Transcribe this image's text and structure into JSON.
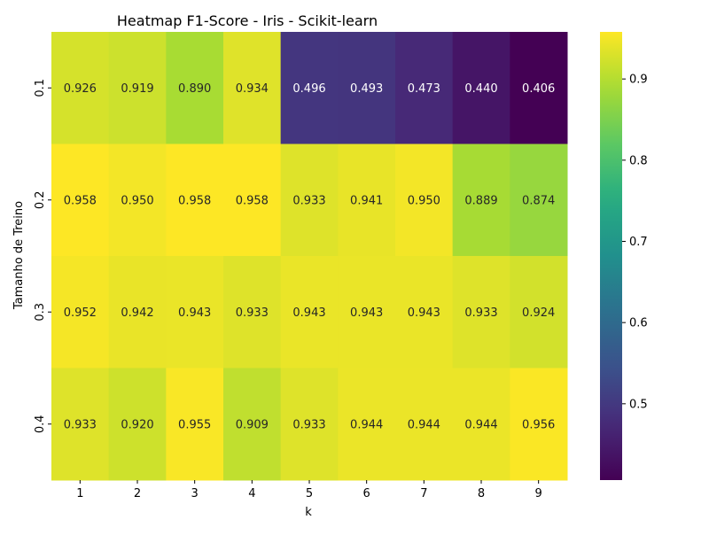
{
  "chart_data": {
    "type": "heatmap",
    "title": "Heatmap F1-Score - Iris - Scikit-learn",
    "xlabel": "k",
    "ylabel": "Tamanho de Treino",
    "x_categories": [
      "1",
      "2",
      "3",
      "4",
      "5",
      "6",
      "7",
      "8",
      "9"
    ],
    "y_categories": [
      "0.1",
      "0.2",
      "0.3",
      "0.4"
    ],
    "values": [
      [
        0.926,
        0.919,
        0.89,
        0.934,
        0.496,
        0.493,
        0.473,
        0.44,
        0.406
      ],
      [
        0.958,
        0.95,
        0.958,
        0.958,
        0.933,
        0.941,
        0.95,
        0.889,
        0.874
      ],
      [
        0.952,
        0.942,
        0.943,
        0.933,
        0.943,
        0.943,
        0.943,
        0.933,
        0.924
      ],
      [
        0.933,
        0.92,
        0.955,
        0.909,
        0.933,
        0.944,
        0.944,
        0.944,
        0.956
      ]
    ],
    "value_format": "0.000",
    "colormap": "viridis",
    "color_range": [
      0.406,
      0.958
    ],
    "colorbar_ticks": [
      "0.5",
      "0.6",
      "0.7",
      "0.8",
      "0.9"
    ],
    "annotation_colors": {
      "dark_cells": "#ffffff",
      "light_cells": "#262626"
    }
  }
}
